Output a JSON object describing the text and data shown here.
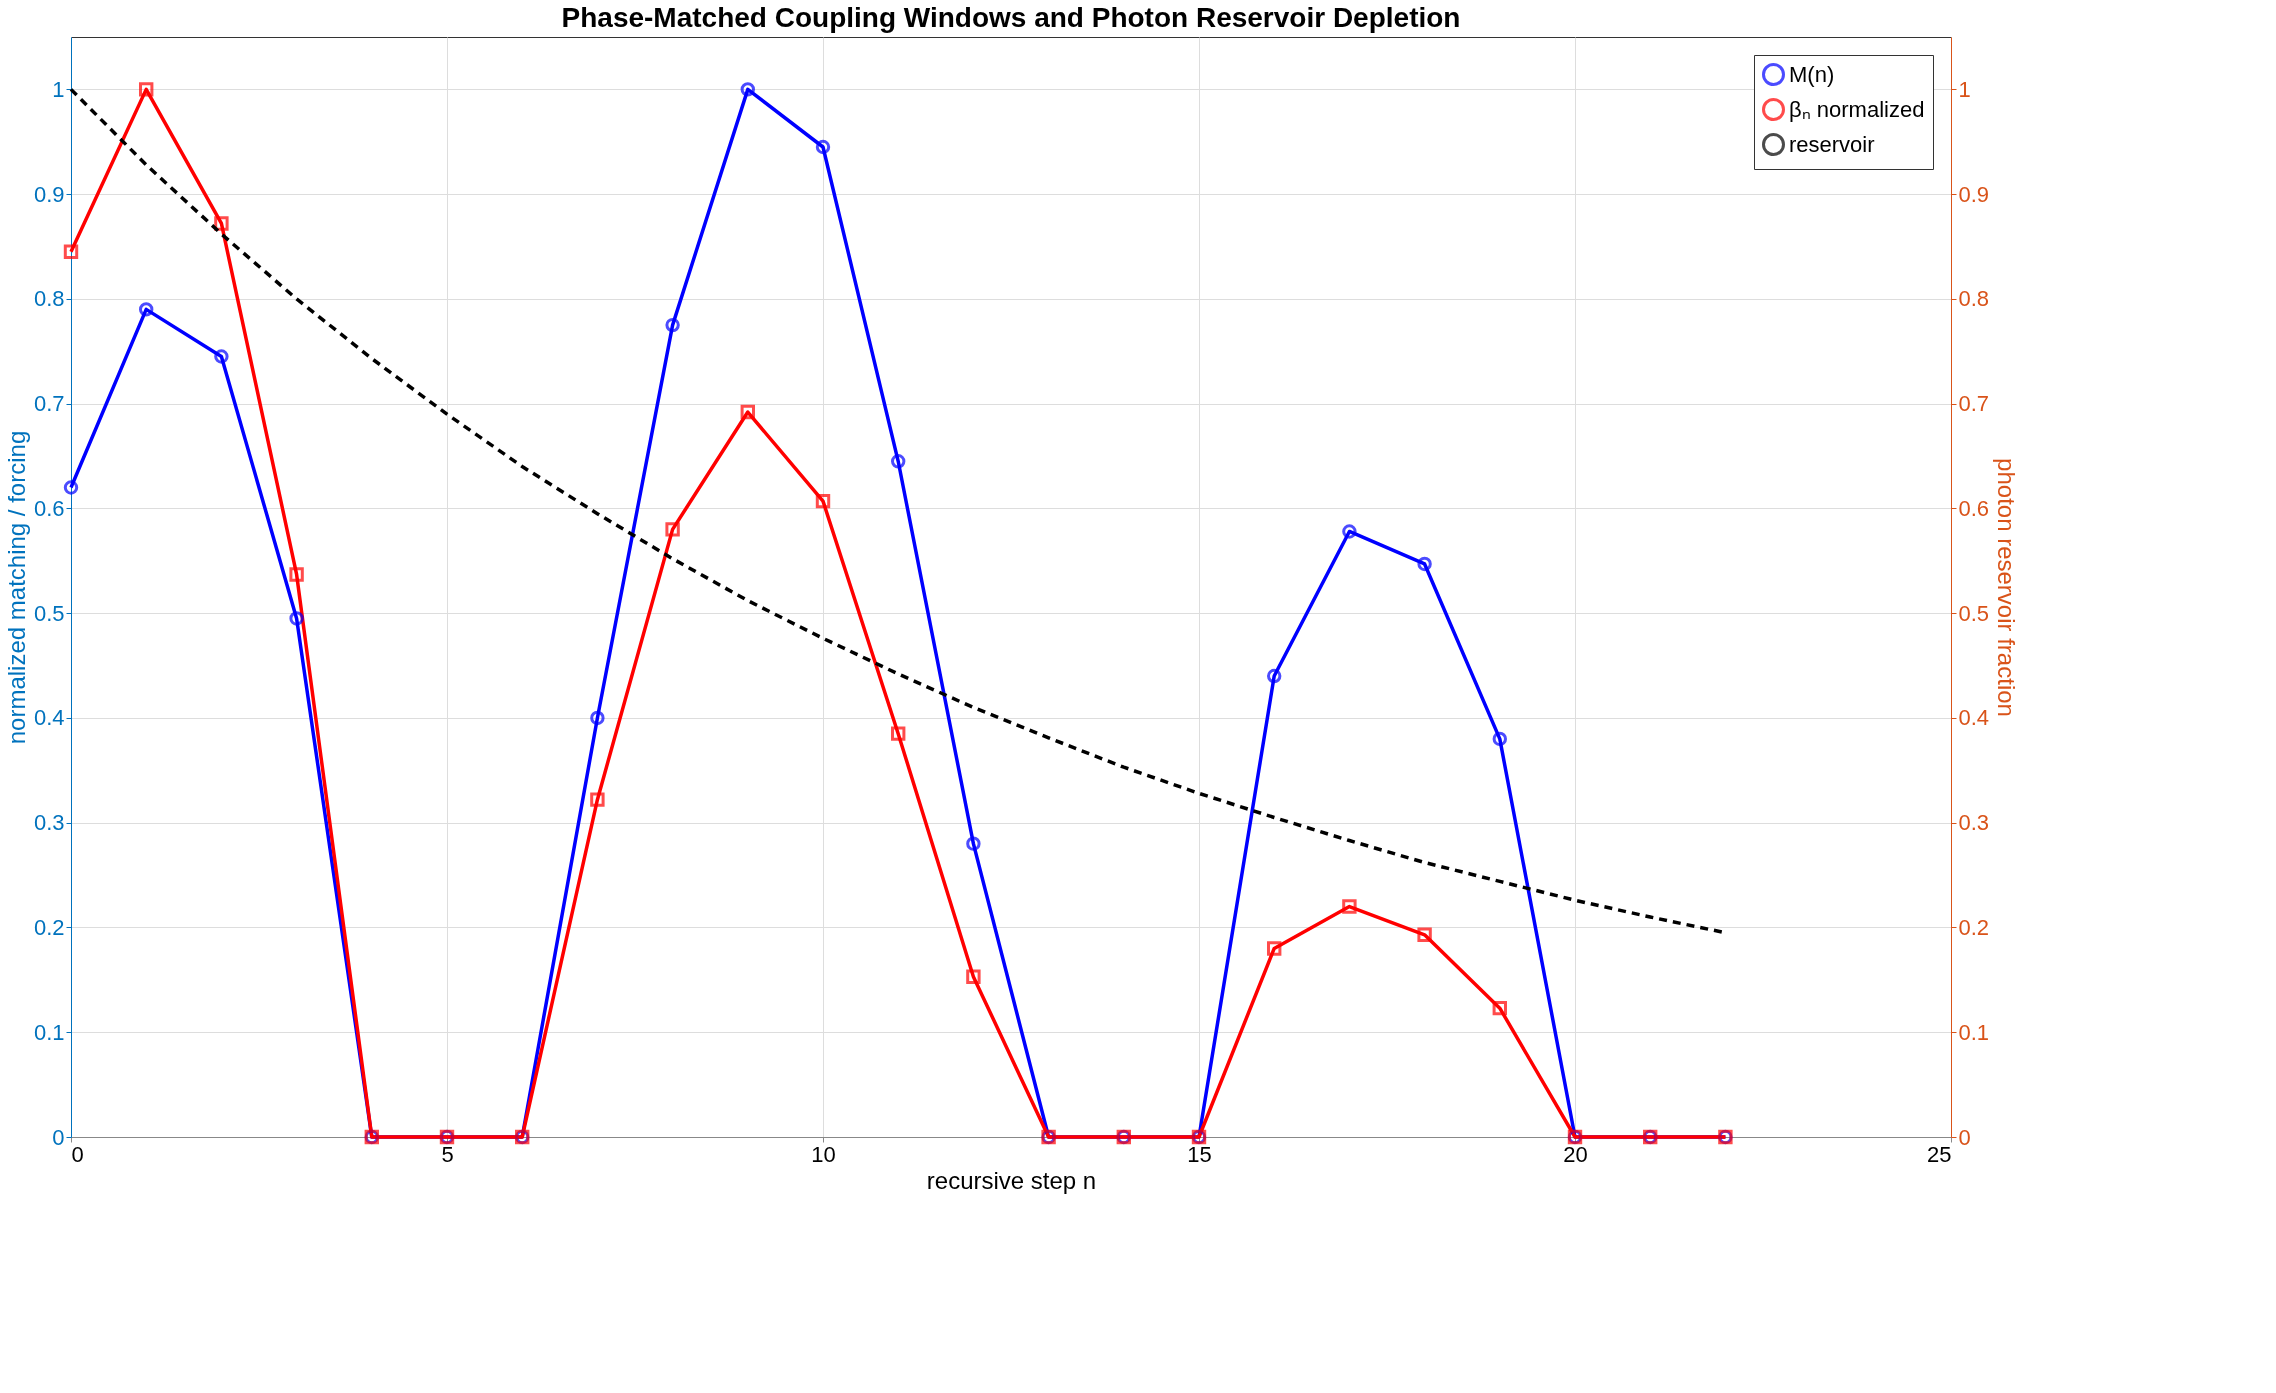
{
  "chart_data": {
    "type": "line",
    "title": "Phase-Matched Coupling Windows and Photon Reservoir Depletion",
    "xlabel": "recursive step n",
    "ylabel": "normalized matching / forcing",
    "y2label": "photon reservoir fraction",
    "x": [
      0,
      1,
      2,
      3,
      4,
      5,
      6,
      7,
      8,
      9,
      10,
      11,
      12,
      13,
      14,
      15,
      16,
      17,
      18,
      19,
      20,
      21,
      22
    ],
    "series": [
      {
        "name": "M(n)",
        "color": "#0000ff",
        "marker": "circle",
        "line_style": "solid",
        "values": [
          0.62,
          0.79,
          0.745,
          0.495,
          0,
          0,
          0,
          0.4,
          0.775,
          1.0,
          0.945,
          0.645,
          0.28,
          0,
          0,
          0,
          0.44,
          0.578,
          0.547,
          0.38,
          0,
          0,
          0
        ]
      },
      {
        "name": "βₙ normalized",
        "color": "#ff0000",
        "marker": "square",
        "line_style": "solid",
        "values": [
          0.845,
          1.0,
          0.872,
          0.537,
          0,
          0,
          0,
          0.322,
          0.58,
          0.692,
          0.607,
          0.385,
          0.153,
          0,
          0,
          0,
          0.18,
          0.22,
          0.193,
          0.123,
          0,
          0,
          0
        ]
      },
      {
        "name": "reservoir",
        "color": "#000000",
        "marker": "none",
        "line_style": "dashed",
        "axis": "y2",
        "values": [
          1,
          0.928,
          0.862,
          0.8,
          0.743,
          0.69,
          0.64,
          0.595,
          0.552,
          0.512,
          0.476,
          0.442,
          0.41,
          0.381,
          0.353,
          0.328,
          0.305,
          0.283,
          0.262,
          0.244,
          0.226,
          0.21,
          0.195
        ]
      }
    ],
    "xlim": [
      0,
      25
    ],
    "xticks": [
      0,
      5,
      10,
      15,
      20,
      25
    ],
    "ylim": [
      0,
      1.05
    ],
    "yticks": [
      0,
      0.1,
      0.2,
      0.3,
      0.4,
      0.5,
      0.6,
      0.7,
      0.8,
      0.9,
      1
    ],
    "y2lim": [
      0,
      1.05
    ],
    "y2ticks": [
      0,
      0.1,
      0.2,
      0.3,
      0.4,
      0.5,
      0.6,
      0.7,
      0.8,
      0.9,
      1
    ],
    "grid": true,
    "legend": "top right"
  }
}
